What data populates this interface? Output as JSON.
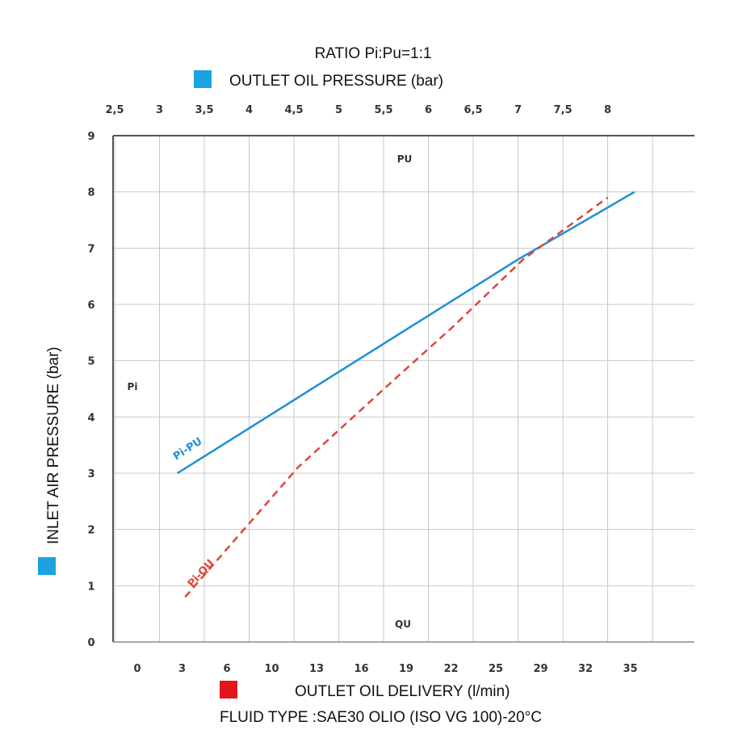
{
  "title": "RATIO  Pi:Pu=1:1",
  "top_axis_label": "OUTLET OIL PRESSURE (bar)",
  "left_axis_label": "INLET AIR PRESSURE (bar)",
  "bottom_axis_label": "OUTLET OIL DELIVERY (l/min)",
  "fluid_note": "FLUID TYPE :SAE30 OLIO (ISO VG 100)-20°C",
  "inner_labels": {
    "pu": "PU",
    "pi": "Pi",
    "qu": "QU"
  },
  "colors": {
    "pu_series": "#1f8fd6",
    "qu_series": "#e0453a",
    "marker_blue": "#1aa3e0",
    "marker_red": "#e3141b",
    "grid": "#c8c8c8",
    "axis": "#555555"
  },
  "chart_data": {
    "type": "line",
    "y_axis": {
      "label": "INLET AIR PRESSURE (bar)",
      "range": [
        0,
        9
      ],
      "ticks": [
        "0",
        "1",
        "2",
        "3",
        "4",
        "5",
        "6",
        "7",
        "8",
        "9"
      ]
    },
    "x_top_axis": {
      "label": "OUTLET OIL PRESSURE (bar)",
      "ticks": [
        "2,5",
        "3",
        "3,5",
        "4",
        "4,5",
        "5",
        "5,5",
        "6",
        "6,5",
        "7",
        "7,5",
        "8"
      ]
    },
    "x_bottom_axis": {
      "label": "OUTLET OIL DELIVERY (l/min)",
      "ticks": [
        "0",
        "3",
        "6",
        "10",
        "13",
        "16",
        "19",
        "22",
        "25",
        "29",
        "32",
        "35"
      ]
    },
    "grid": true,
    "series": [
      {
        "name": "Pi-PU",
        "axis": "top",
        "style": "solid",
        "x": [
          3.2,
          4.0,
          5.0,
          6.0,
          7.0,
          8.3
        ],
        "y": [
          3.0,
          3.8,
          4.8,
          5.8,
          6.8,
          8.0
        ]
      },
      {
        "name": "Pi-QU",
        "axis": "bottom",
        "style": "dashed",
        "x": [
          5,
          13,
          20,
          24,
          29,
          35
        ],
        "y": [
          0.8,
          3.1,
          4.7,
          5.6,
          6.8,
          7.9
        ]
      }
    ]
  }
}
